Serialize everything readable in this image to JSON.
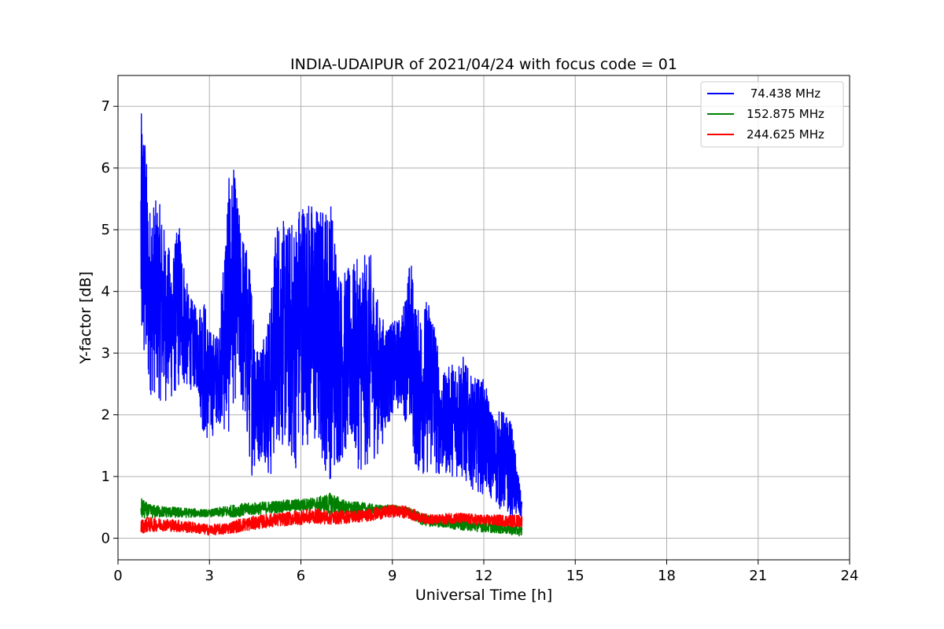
{
  "chart_data": {
    "type": "line",
    "title": "INDIA-UDAIPUR of 2021/04/24 with focus code = 01",
    "xlabel": "Universal Time [h]",
    "ylabel": "Y-factor [dB]",
    "xlim": [
      0,
      24
    ],
    "ylim": [
      -0.35,
      7.5
    ],
    "xticks": [
      0,
      3,
      6,
      9,
      12,
      15,
      18,
      21,
      24
    ],
    "yticks": [
      0,
      1,
      2,
      3,
      4,
      5,
      6,
      7
    ],
    "grid": true,
    "legend_position": "top-right",
    "series": [
      {
        "name": " 74.438 MHz",
        "color": "#0000ff",
        "x": [
          0.75,
          0.8,
          0.9,
          1.0,
          1.2,
          1.4,
          1.6,
          1.8,
          2.0,
          2.3,
          2.6,
          2.8,
          3.0,
          3.3,
          3.6,
          3.8,
          4.0,
          4.2,
          4.4,
          4.6,
          4.8,
          5.0,
          5.2,
          5.5,
          5.8,
          6.0,
          6.3,
          6.6,
          7.0,
          7.3,
          7.6,
          8.0,
          8.3,
          8.6,
          9.0,
          9.3,
          9.6,
          9.8,
          10.0,
          10.3,
          10.6,
          11.0,
          11.3,
          11.6,
          12.0,
          12.3,
          12.6,
          12.9,
          13.25
        ],
        "lo": [
          2.6,
          2.5,
          2.4,
          2.3,
          2.3,
          2.2,
          2.2,
          2.2,
          2.4,
          2.4,
          2.4,
          1.6,
          1.5,
          1.9,
          1.5,
          2.2,
          2.2,
          1.5,
          1.0,
          1.2,
          1.3,
          0.8,
          1.5,
          1.4,
          1.0,
          1.5,
          1.5,
          1.2,
          0.9,
          1.2,
          1.4,
          1.0,
          1.2,
          1.4,
          2.0,
          2.1,
          1.6,
          1.0,
          1.0,
          1.0,
          1.0,
          1.0,
          0.9,
          0.8,
          0.7,
          0.6,
          0.4,
          0.3,
          0.3
        ],
        "hi": [
          6.8,
          7.1,
          6.6,
          5.4,
          5.5,
          5.4,
          4.8,
          4.6,
          5.2,
          4.0,
          3.7,
          4.0,
          3.4,
          3.3,
          5.8,
          6.0,
          5.2,
          4.8,
          4.2,
          3.0,
          3.5,
          3.8,
          5.3,
          5.1,
          5.2,
          5.6,
          5.5,
          5.4,
          5.5,
          4.3,
          4.4,
          4.6,
          4.6,
          3.6,
          3.5,
          3.6,
          4.6,
          3.7,
          3.8,
          4.0,
          2.6,
          2.9,
          3.0,
          2.6,
          2.6,
          2.0,
          2.1,
          1.9,
          0.6
        ]
      },
      {
        "name": "152.875 MHz",
        "color": "#008000",
        "x": [
          0.75,
          1.0,
          1.5,
          2.0,
          2.5,
          3.0,
          3.5,
          4.0,
          4.5,
          5.0,
          5.5,
          6.0,
          6.5,
          7.0,
          7.5,
          8.0,
          8.5,
          9.0,
          9.5,
          10.0,
          10.5,
          11.0,
          11.5,
          12.0,
          12.5,
          13.0,
          13.25
        ],
        "lo": [
          0.3,
          0.32,
          0.34,
          0.33,
          0.34,
          0.35,
          0.34,
          0.35,
          0.38,
          0.4,
          0.42,
          0.44,
          0.45,
          0.38,
          0.38,
          0.38,
          0.4,
          0.42,
          0.36,
          0.2,
          0.18,
          0.15,
          0.12,
          0.1,
          0.08,
          0.05,
          0.03
        ],
        "hi": [
          0.66,
          0.55,
          0.52,
          0.5,
          0.48,
          0.46,
          0.52,
          0.56,
          0.58,
          0.6,
          0.62,
          0.64,
          0.66,
          0.74,
          0.6,
          0.58,
          0.54,
          0.54,
          0.5,
          0.4,
          0.36,
          0.32,
          0.3,
          0.28,
          0.26,
          0.22,
          0.2
        ]
      },
      {
        "name": "244.625 MHz",
        "color": "#ff0000",
        "x": [
          0.75,
          1.0,
          1.5,
          2.0,
          2.5,
          3.0,
          3.5,
          4.0,
          4.5,
          5.0,
          5.5,
          6.0,
          6.5,
          7.0,
          7.5,
          8.0,
          8.5,
          9.0,
          9.5,
          10.0,
          10.5,
          11.0,
          11.5,
          12.0,
          12.5,
          13.0,
          13.25
        ],
        "lo": [
          0.08,
          0.1,
          0.12,
          0.1,
          0.08,
          0.05,
          0.06,
          0.1,
          0.14,
          0.18,
          0.2,
          0.22,
          0.24,
          0.22,
          0.24,
          0.26,
          0.3,
          0.34,
          0.32,
          0.24,
          0.22,
          0.24,
          0.22,
          0.2,
          0.2,
          0.18,
          0.18
        ],
        "hi": [
          0.3,
          0.34,
          0.32,
          0.3,
          0.26,
          0.22,
          0.24,
          0.32,
          0.36,
          0.4,
          0.42,
          0.46,
          0.48,
          0.44,
          0.46,
          0.46,
          0.5,
          0.54,
          0.52,
          0.4,
          0.38,
          0.42,
          0.4,
          0.38,
          0.38,
          0.38,
          0.38
        ]
      }
    ]
  }
}
